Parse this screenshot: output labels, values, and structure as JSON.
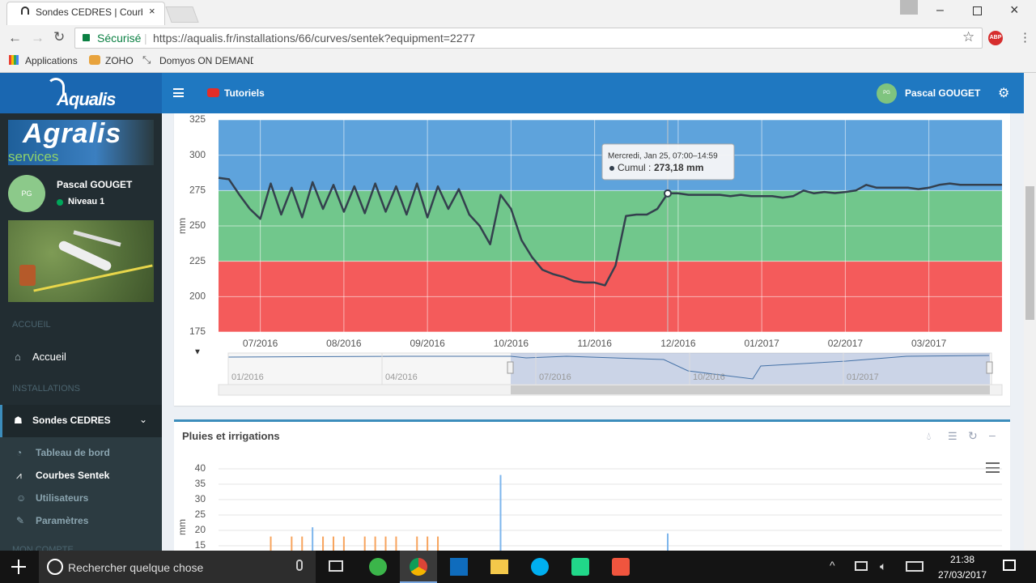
{
  "browser": {
    "tab_title": "Sondes CEDRES | Courbe",
    "secure": "Sécurisé",
    "url": "https://aqualis.fr/installations/66/curves/sentek?equipment=2277",
    "bookmarks": [
      "Applications",
      "ZOHO",
      "Domyos ON DEMAND"
    ],
    "extension": "ABP"
  },
  "header": {
    "logo": "Aqualis",
    "tutorials": "Tutoriels",
    "user": "Pascal GOUGET",
    "avatar": "PG"
  },
  "sidebar": {
    "brand": "Agralis",
    "brand_sub": "services",
    "avatar": "PG",
    "user": "Pascal GOUGET",
    "level": "Niveau 1",
    "section_home": "ACCUEIL",
    "home": "Accueil",
    "section_installations": "INSTALLATIONS",
    "installations": "Sondes CEDRES",
    "submenu": [
      "Tableau de bord",
      "Courbes Sentek",
      "Utilisateurs",
      "Paramètres"
    ],
    "section_account": "MON COMPTE"
  },
  "chart_data": [
    {
      "type": "line",
      "y_label": "mm",
      "categories": [
        null,
        null,
        null,
        null,
        "07/2016",
        null,
        null,
        null,
        null,
        null,
        null,
        null,
        "08/2016",
        null,
        null,
        null,
        null,
        null,
        null,
        null,
        "09/2016",
        null,
        null,
        null,
        null,
        null,
        null,
        null,
        "10/2016",
        null,
        null,
        null,
        null,
        null,
        null,
        null,
        "11/2016",
        null,
        null,
        null,
        null,
        null,
        null,
        null,
        "12/2016",
        null,
        null,
        null,
        null,
        null,
        null,
        null,
        "01/2017",
        null,
        null,
        null,
        null,
        null,
        null,
        null,
        "02/2017",
        null,
        null,
        null,
        null,
        null,
        null,
        null,
        "03/2017",
        null,
        null,
        null,
        null,
        null,
        null,
        null
      ],
      "series": [
        {
          "name": "Cumul",
          "color": "#34404e",
          "values": [
            284,
            283,
            272,
            262,
            255,
            280,
            258,
            277,
            256,
            281,
            262,
            279,
            260,
            278,
            259,
            280,
            260,
            278,
            258,
            280,
            256,
            278,
            262,
            276,
            258,
            250,
            237,
            272,
            262,
            240,
            228,
            219,
            216,
            214,
            211,
            210,
            210,
            208,
            222,
            257,
            258,
            258,
            262,
            273,
            273,
            272,
            272,
            272,
            272,
            271,
            272,
            271,
            271,
            271,
            270,
            271,
            275,
            273,
            274,
            273.18,
            274,
            275,
            279,
            277,
            277,
            277,
            277,
            276,
            277,
            279,
            280,
            279,
            279,
            279,
            279,
            279
          ]
        }
      ],
      "ylim": [
        175,
        325
      ],
      "yticks": [
        175,
        200,
        225,
        250,
        275,
        300,
        325
      ],
      "grid": true,
      "plot_bands": [
        {
          "from": 175,
          "to": 225,
          "color": "#f45b5b"
        },
        {
          "from": 225,
          "to": 275,
          "color": "#71c78c"
        },
        {
          "from": 275,
          "to": 325,
          "color": "#5ea3dc"
        }
      ],
      "tooltip": {
        "title": "Mercredi, Jan 25, 07:00–14:59",
        "label": "273,18 mm"
      },
      "navigator_labels": [
        "01/2016",
        "04/2016",
        "07/2016",
        "10/2016",
        "01/2017"
      ]
    },
    {
      "type": "bar",
      "title": "Pluies et irrigations",
      "y_label": "mm",
      "categories": [
        null,
        null,
        null,
        null,
        null,
        null,
        null,
        null,
        null,
        null,
        null,
        null,
        null,
        null,
        null,
        null,
        null,
        null,
        null,
        null,
        null,
        null,
        null,
        null,
        null,
        null,
        null,
        null,
        null,
        null,
        null,
        null,
        null,
        null,
        null,
        null,
        null,
        null,
        null,
        null,
        null,
        null,
        null,
        null,
        null,
        null,
        null,
        null,
        null,
        null,
        null,
        null,
        null,
        null,
        null,
        null,
        null,
        null,
        null,
        null,
        null,
        null,
        null,
        null,
        null,
        null,
        null,
        null,
        null,
        null,
        null,
        null,
        null,
        null,
        null,
        null
      ],
      "series": [
        {
          "color": "#f7a35c",
          "values": [
            null,
            null,
            null,
            null,
            null,
            18,
            null,
            18,
            18,
            null,
            18,
            18,
            18,
            null,
            18,
            18,
            18,
            18,
            null,
            18,
            18,
            18,
            null,
            null,
            null,
            null,
            null,
            null,
            null,
            null,
            null,
            null,
            null,
            null,
            null,
            null,
            null,
            null,
            null,
            null,
            null,
            null,
            null,
            null,
            null,
            null,
            null,
            null,
            null,
            null,
            null,
            null,
            null,
            null,
            null,
            null,
            null,
            null,
            null,
            null,
            null,
            null,
            null,
            null,
            null,
            null,
            null,
            null,
            null,
            null,
            null,
            null,
            null,
            null,
            null,
            null
          ]
        },
        {
          "color": "#7cb5ec",
          "values": [
            null,
            null,
            null,
            null,
            null,
            null,
            null,
            null,
            null,
            21,
            null,
            null,
            null,
            null,
            null,
            null,
            null,
            null,
            null,
            null,
            null,
            null,
            null,
            null,
            null,
            null,
            null,
            38,
            null,
            null,
            null,
            null,
            null,
            null,
            null,
            null,
            null,
            null,
            null,
            null,
            null,
            null,
            null,
            19,
            null,
            null,
            null,
            null,
            null,
            null,
            null,
            null,
            null,
            null,
            null,
            null,
            null,
            null,
            null,
            null,
            null,
            null,
            null,
            null,
            null,
            null,
            null,
            null,
            null,
            null,
            null,
            null,
            null,
            null,
            null,
            null
          ]
        }
      ],
      "ylim": [
        0,
        40
      ],
      "yticks": [
        15,
        20,
        25,
        30,
        35,
        40
      ],
      "grid": true
    }
  ],
  "taskbar": {
    "search": "Rechercher quelque chose",
    "time": "21:38",
    "date": "27/03/2017"
  }
}
